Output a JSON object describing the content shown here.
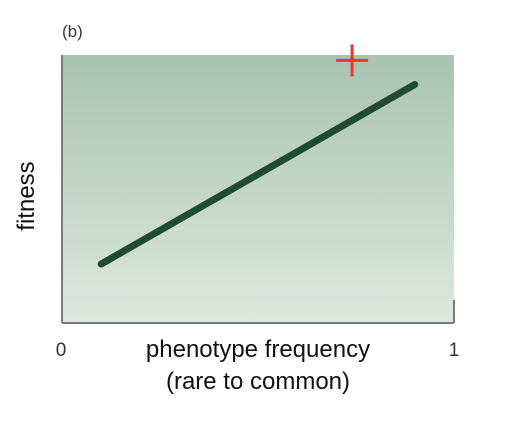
{
  "chart_data": {
    "type": "line",
    "panel_label": "(b)",
    "xlabel": "phenotype frequency",
    "xlabel_sub": "(rare to common)",
    "ylabel": "fitness",
    "x_tick_labels": [
      "0",
      "1"
    ],
    "xlim": [
      0,
      1
    ],
    "ylim": [
      0,
      1
    ],
    "grid": false,
    "legend": "none",
    "series": [
      {
        "x": [
          0.1,
          0.9
        ],
        "y": [
          0.22,
          0.89
        ],
        "color": "#1f4a35"
      }
    ],
    "annotation": {
      "text": "+",
      "x": 0.74,
      "y": 0.98,
      "color": "#e8372c"
    },
    "background_gradient": [
      "#a9c3b1",
      "#dde8df"
    ]
  }
}
